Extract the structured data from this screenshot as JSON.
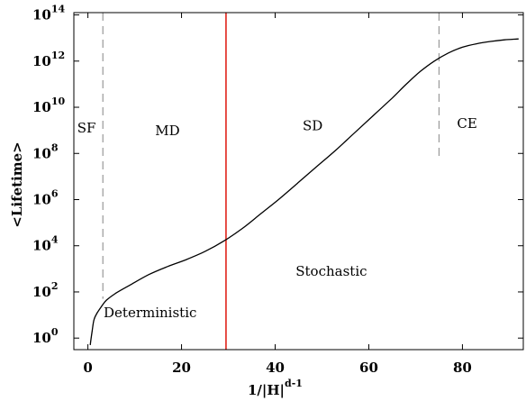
{
  "chart_data": {
    "type": "line",
    "x_label": {
      "base": "1/|H|",
      "sup": "d-1"
    },
    "y_label": "<Lifetime>",
    "xlim": [
      -3,
      93
    ],
    "ylim_log10": [
      -0.5,
      14.1
    ],
    "y_scale": "log",
    "x_ticks": [
      0,
      20,
      40,
      60,
      80
    ],
    "x_tick_labels": [
      "0",
      "20",
      "40",
      "60",
      "80"
    ],
    "y_ticks_log10": [
      0,
      2,
      4,
      6,
      8,
      10,
      12,
      14
    ],
    "y_tick_labels": [
      {
        "base": "10",
        "exp": "0"
      },
      {
        "base": "10",
        "exp": "2"
      },
      {
        "base": "10",
        "exp": "4"
      },
      {
        "base": "10",
        "exp": "6"
      },
      {
        "base": "10",
        "exp": "8"
      },
      {
        "base": "10",
        "exp": "10"
      },
      {
        "base": "10",
        "exp": "12"
      },
      {
        "base": "10",
        "exp": "14"
      }
    ],
    "series": [
      {
        "color": "#000000",
        "points_log10": [
          [
            0.5,
            -0.3
          ],
          [
            0.9,
            0.3
          ],
          [
            1.3,
            0.8
          ],
          [
            2.0,
            1.1
          ],
          [
            3.0,
            1.4
          ],
          [
            4.0,
            1.65
          ],
          [
            6.0,
            1.95
          ],
          [
            9.0,
            2.3
          ],
          [
            13.0,
            2.75
          ],
          [
            17.0,
            3.1
          ],
          [
            21.0,
            3.4
          ],
          [
            25.0,
            3.75
          ],
          [
            29.0,
            4.2
          ],
          [
            33.0,
            4.75
          ],
          [
            37.0,
            5.4
          ],
          [
            41.0,
            6.05
          ],
          [
            45.0,
            6.75
          ],
          [
            49.0,
            7.45
          ],
          [
            53.0,
            8.15
          ],
          [
            57.0,
            8.9
          ],
          [
            61.0,
            9.65
          ],
          [
            65.0,
            10.4
          ],
          [
            68.0,
            11.0
          ],
          [
            71.0,
            11.55
          ],
          [
            74.0,
            12.0
          ],
          [
            77.0,
            12.35
          ],
          [
            80.0,
            12.6
          ],
          [
            83.0,
            12.75
          ],
          [
            86.0,
            12.85
          ],
          [
            89.0,
            12.92
          ],
          [
            92.0,
            12.96
          ]
        ]
      }
    ],
    "vertical_lines": [
      {
        "x": 3.2,
        "style": "dashed",
        "color": "#999999",
        "y_top_log10": 14.1,
        "y_bottom_log10": 1.7
      },
      {
        "x": 29.5,
        "style": "solid",
        "color": "#e0241b",
        "y_top_log10": 14.1,
        "y_bottom_log10": -0.5
      },
      {
        "x": 75.0,
        "style": "dashed",
        "color": "#999999",
        "y_top_log10": 14.1,
        "y_bottom_log10": 7.7
      }
    ],
    "annotations": [
      {
        "text": "SF",
        "x": -0.3,
        "y_log10": 8.9
      },
      {
        "text": "MD",
        "x": 17.0,
        "y_log10": 8.8
      },
      {
        "text": "SD",
        "x": 48.0,
        "y_log10": 9.0
      },
      {
        "text": "CE",
        "x": 81.0,
        "y_log10": 9.1
      },
      {
        "text": "Stochastic",
        "x": 52.0,
        "y_log10": 2.7
      },
      {
        "text": "Deterministic",
        "x": 13.3,
        "y_log10": 0.9
      }
    ]
  }
}
